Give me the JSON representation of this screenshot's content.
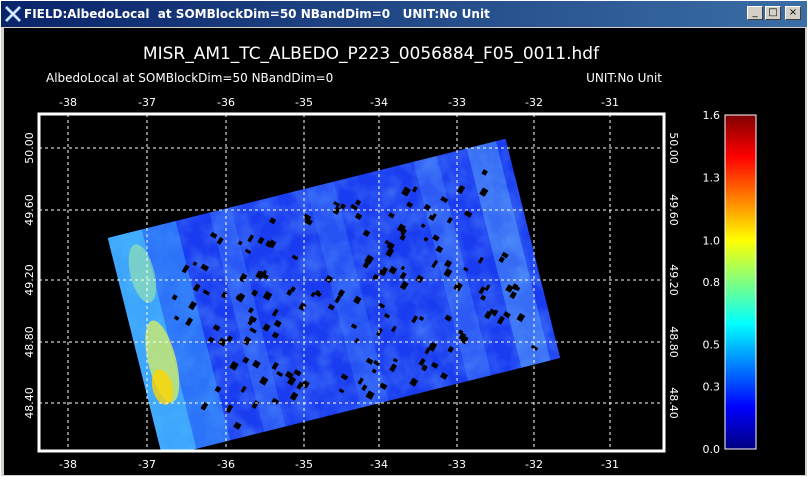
{
  "window": {
    "title": "FIELD:AlbedoLocal  at SOMBlockDim=50 NBandDim=0   UNIT:No Unit",
    "buttons": {
      "minimize": "_",
      "maximize": "□",
      "close": "×"
    }
  },
  "plot": {
    "title": "MISR_AM1_TC_ALBEDO_P223_0056884_F05_0011.hdf",
    "subtitle_left": "AlbedoLocal at SOMBlockDim=50 NBandDim=0",
    "subtitle_right": "UNIT:No Unit"
  },
  "map_data": {
    "longitude_ticks": [
      "-38",
      "-37",
      "-36",
      "-35",
      "-34",
      "-33",
      "-32",
      "-31"
    ],
    "latitude_ticks": [
      "50.00",
      "49.60",
      "49.20",
      "48.80",
      "48.40"
    ],
    "graticule": "dashed-white",
    "swath_rotation_deg": -14
  },
  "colorbar": {
    "ticks": [
      "1.6",
      "1.3",
      "1.0",
      "0.8",
      "0.5",
      "0.3",
      "0.0"
    ],
    "range": [
      0.0,
      1.6
    ],
    "colormap": "rainbow",
    "stops": [
      "#000080",
      "#0000ff",
      "#0080ff",
      "#00ffff",
      "#80ff80",
      "#ffff00",
      "#ff8000",
      "#ff0000",
      "#800000"
    ]
  }
}
